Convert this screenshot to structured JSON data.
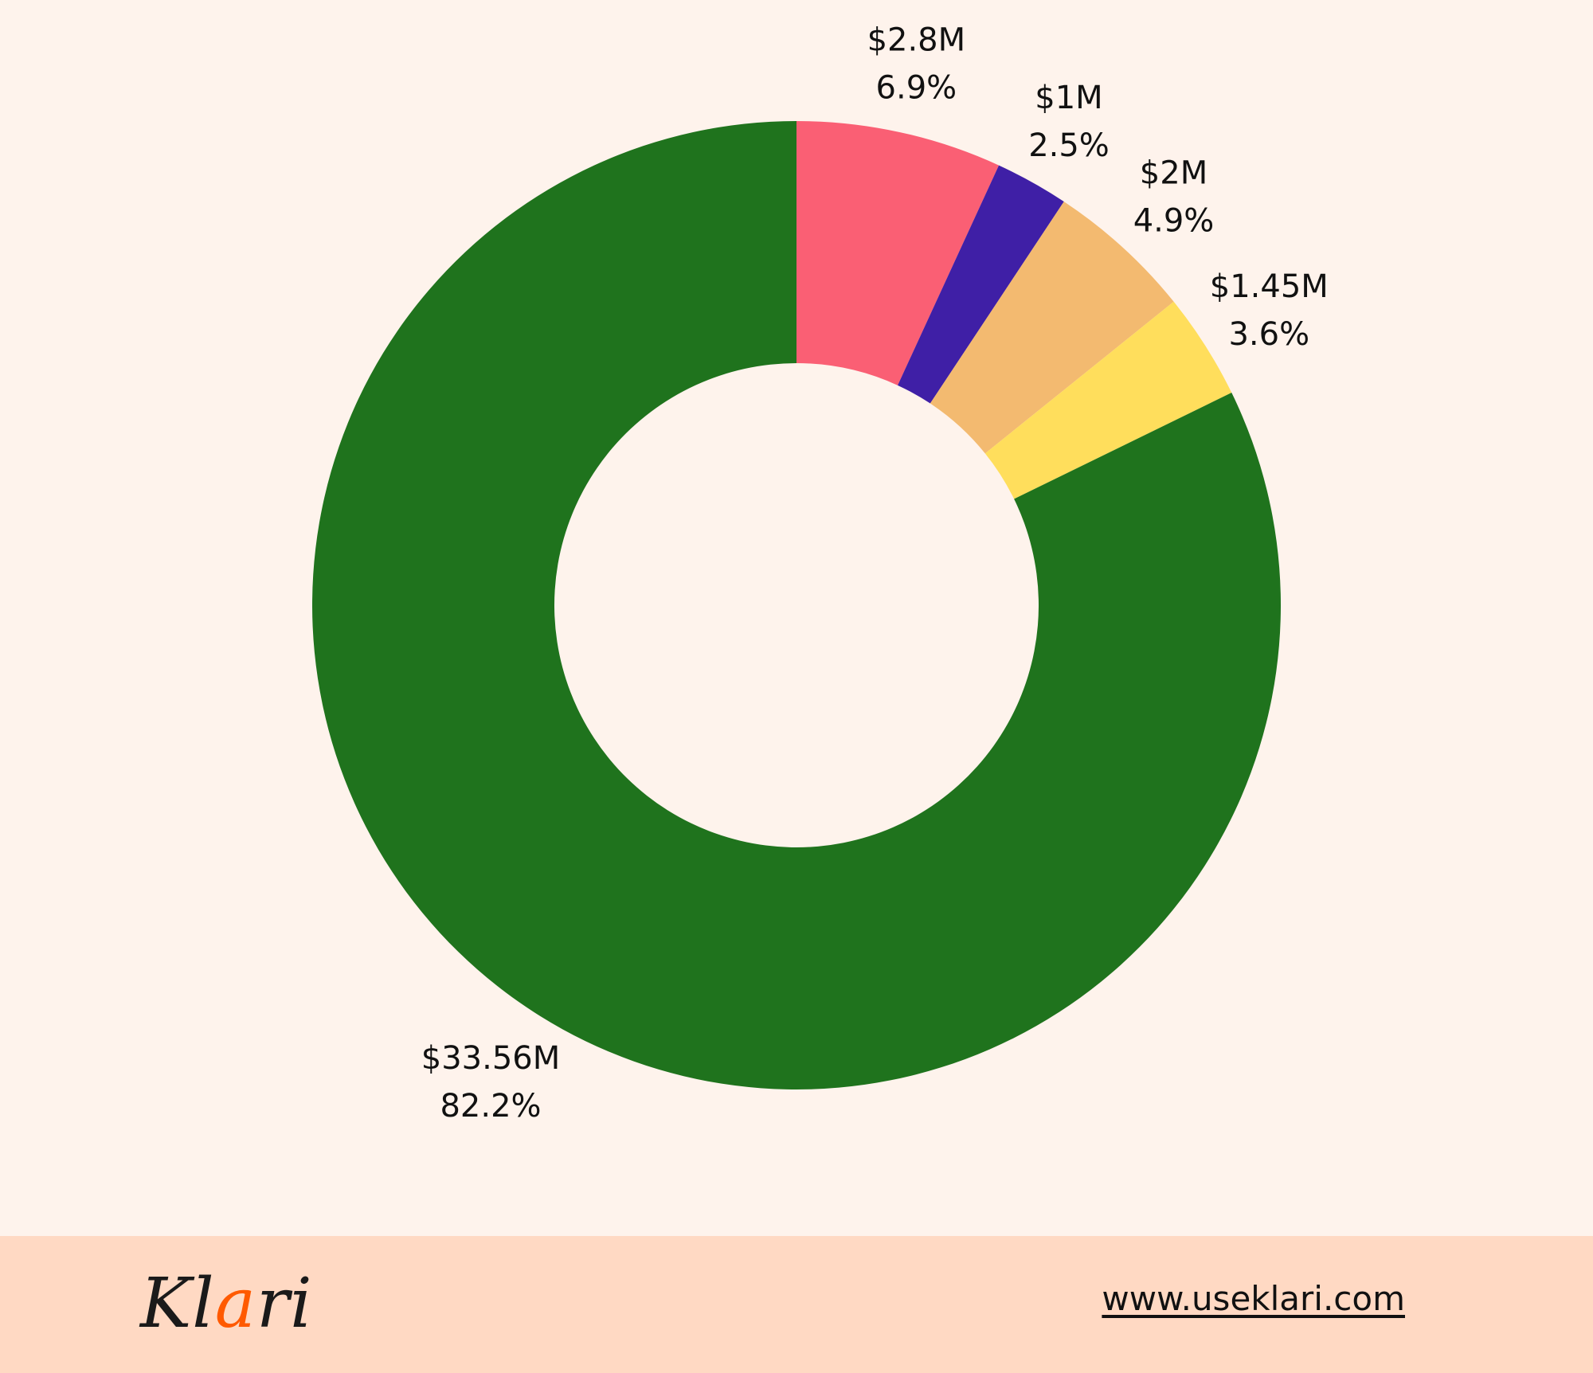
{
  "chart_data": {
    "type": "pie",
    "title": "",
    "slices": [
      {
        "value_label": "$33.56M",
        "percent_label": "82.2%",
        "value": 33.56,
        "percent": 82.2,
        "color": "#1F731D"
      },
      {
        "value_label": "$2.8M",
        "percent_label": "6.9%",
        "value": 2.8,
        "percent": 6.9,
        "color": "#FA5F74"
      },
      {
        "value_label": "$1M",
        "percent_label": "2.5%",
        "value": 1.0,
        "percent": 2.5,
        "color": "#3F1FA6"
      },
      {
        "value_label": "$2M",
        "percent_label": "4.9%",
        "value": 2.0,
        "percent": 4.9,
        "color": "#F3BA70"
      },
      {
        "value_label": "$1.45M",
        "percent_label": "3.6%",
        "value": 1.45,
        "percent": 3.6,
        "color": "#FFDE5C"
      }
    ],
    "donut": true,
    "legend": "none"
  },
  "footer": {
    "brand": {
      "prefix": "Kl",
      "accent": "a",
      "suffix": "ri",
      "accent_color": "#FF5A00"
    },
    "link": "www.useklari.com"
  },
  "colors": {
    "background": "#FEF3EC",
    "footer_background": "#FFD9C3"
  }
}
